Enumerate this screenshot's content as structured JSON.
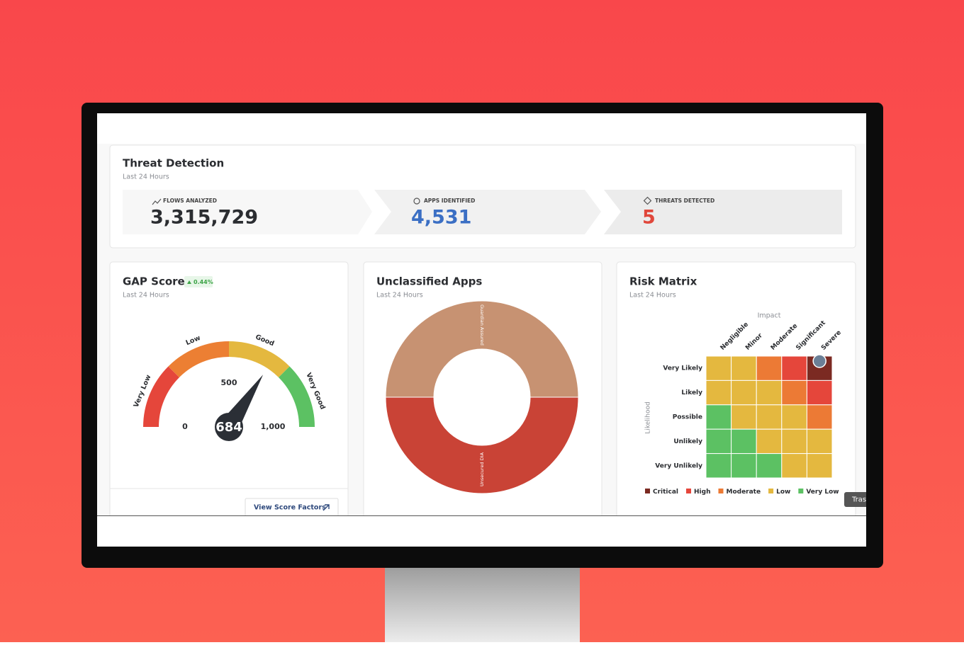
{
  "threat_detection": {
    "title": "Threat Detection",
    "subtitle": "Last 24 Hours",
    "stats": [
      {
        "label": "FLOWS ANALYZED",
        "value": "3,315,729",
        "color": "#2b2d31"
      },
      {
        "label": "APPS IDENTIFIED",
        "value": "4,531",
        "color": "#3b6fc4"
      },
      {
        "label": "THREATS DETECTED",
        "value": "5",
        "color": "#e0473b"
      }
    ]
  },
  "gap_score": {
    "title": "GAP Score",
    "change": "0.44%",
    "subtitle": "Last 24 Hours",
    "gauge": {
      "value": 684,
      "lim": [
        0,
        1000
      ],
      "ticks": [
        0,
        500,
        {
          "value": 1000,
          "label": "1,000"
        }
      ],
      "band_edges": [
        0,
        250,
        500,
        750,
        1000
      ],
      "bands": [
        {
          "name": "Very Low",
          "color": "#e5463b"
        },
        {
          "name": "Low",
          "color": "#ec7f33"
        },
        {
          "name": "Good",
          "color": "#e4b83f"
        },
        {
          "name": "Very Good",
          "color": "#5cc163"
        }
      ]
    },
    "button": "View Score Factors"
  },
  "unclassified_apps": {
    "title": "Unclassified Apps",
    "subtitle": "Last 24 Hours",
    "segments": [
      {
        "name": "Guardian Assured",
        "value": 50,
        "color": "#c79272"
      },
      {
        "name": "Unsecured DIA",
        "value": 50,
        "color": "#c94336"
      }
    ]
  },
  "risk_matrix": {
    "title": "Risk Matrix",
    "subtitle": "Last 24 Hours",
    "x_label": "Impact",
    "y_label": "Likelihood",
    "columns": [
      "Negligible",
      "Minor",
      "Moderate",
      "Significant",
      "Severe"
    ],
    "rows": [
      "Very Likely",
      "Likely",
      "Possible",
      "Unlikely",
      "Very Unlikely"
    ],
    "levels": [
      {
        "name": "Critical",
        "color": "#7b2a22"
      },
      {
        "name": "High",
        "color": "#e5463b"
      },
      {
        "name": "Moderate",
        "color": "#ec7a35"
      },
      {
        "name": "Low",
        "color": "#e4b83f"
      },
      {
        "name": "Very Low",
        "color": "#5cc163"
      }
    ],
    "cells": [
      [
        3,
        3,
        2,
        1,
        0
      ],
      [
        3,
        3,
        3,
        2,
        1
      ],
      [
        4,
        3,
        3,
        3,
        2
      ],
      [
        4,
        4,
        3,
        3,
        3
      ],
      [
        4,
        4,
        4,
        3,
        3
      ]
    ]
  },
  "tooltip": "Tras"
}
